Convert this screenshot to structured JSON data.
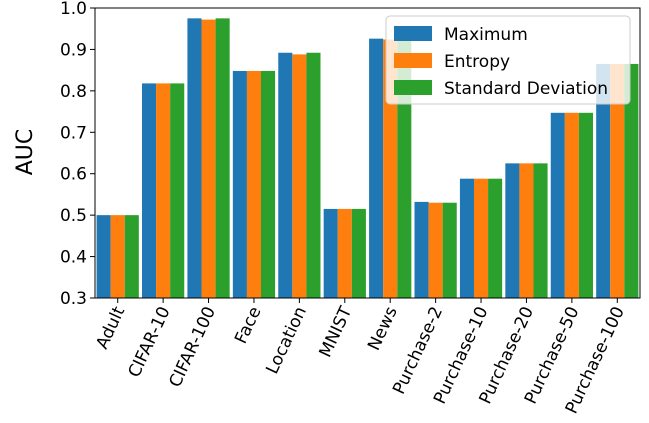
{
  "chart_data": {
    "type": "bar",
    "title": "",
    "xlabel": "",
    "ylabel": "AUC",
    "ylim": [
      0.3,
      1.0
    ],
    "yticks": [
      "0.3",
      "0.4",
      "0.5",
      "0.6",
      "0.7",
      "0.8",
      "0.9",
      "1.0"
    ],
    "grid": false,
    "legend_position": "top-right",
    "categories": [
      "Adult",
      "CIFAR-10",
      "CIFAR-100",
      "Face",
      "Location",
      "MNIST",
      "News",
      "Purchase-2",
      "Purchase-10",
      "Purchase-20",
      "Purchase-50",
      "Purchase-100"
    ],
    "series": [
      {
        "name": "Maximum",
        "color": "#1f77b4",
        "values": [
          0.5,
          0.818,
          0.975,
          0.848,
          0.892,
          0.515,
          0.926,
          0.532,
          0.588,
          0.625,
          0.747,
          0.865
        ]
      },
      {
        "name": "Entropy",
        "color": "#ff7f0e",
        "values": [
          0.5,
          0.818,
          0.972,
          0.848,
          0.888,
          0.515,
          0.924,
          0.53,
          0.588,
          0.625,
          0.747,
          0.865
        ]
      },
      {
        "name": "Standard Deviation",
        "color": "#2ca02c",
        "values": [
          0.5,
          0.818,
          0.975,
          0.848,
          0.892,
          0.515,
          0.926,
          0.53,
          0.588,
          0.625,
          0.747,
          0.865
        ]
      }
    ]
  }
}
